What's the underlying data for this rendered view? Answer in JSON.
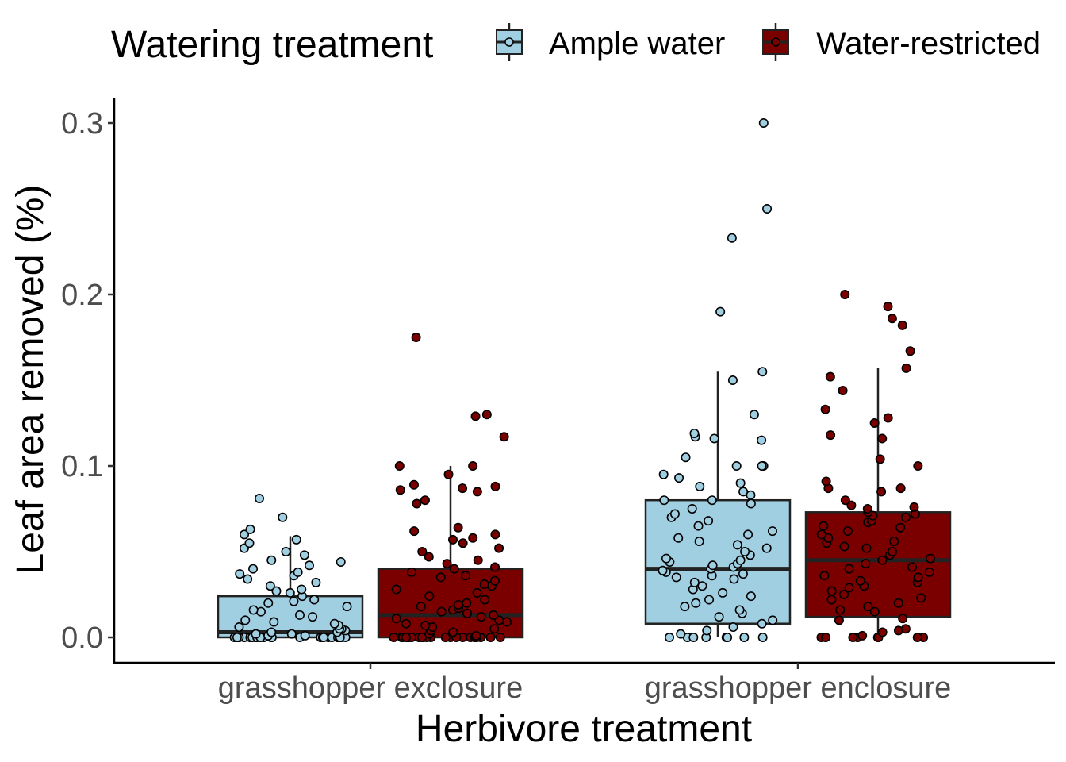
{
  "colors": {
    "ample": "#a1cfe2",
    "restricted": "#7a0000",
    "outline": "#222222"
  },
  "chart_data": {
    "type": "boxplot",
    "xlabel": "Herbivore treatment",
    "ylabel": "Leaf area removed (%)",
    "ylim": [
      -0.015,
      0.315
    ],
    "yticks": [
      0.0,
      0.1,
      0.2,
      0.3
    ],
    "ytick_labels": [
      "0.0",
      "0.1",
      "0.2",
      "0.3"
    ],
    "categories": [
      "grasshopper exclosure",
      "grasshopper enclosure"
    ],
    "legend": {
      "title": "Watering treatment",
      "position": "top",
      "entries": [
        "Ample water",
        "Water-restricted"
      ]
    },
    "grid": false,
    "series": [
      {
        "name": "Ample water",
        "color": "#a1cfe2",
        "boxes": [
          {
            "category": "grasshopper exclosure",
            "q1": 0.0,
            "median": 0.003,
            "q3": 0.024,
            "whisker_low": 0.0,
            "whisker_high": 0.059
          },
          {
            "category": "grasshopper enclosure",
            "q1": 0.008,
            "median": 0.04,
            "q3": 0.08,
            "whisker_low": 0.0,
            "whisker_high": 0.155
          }
        ],
        "points": [
          [
            0.0,
            0.0,
            0.0,
            0.0,
            0.0,
            0.0,
            0.0,
            0.0,
            0.0,
            0.0,
            0.0,
            0.0,
            0.0,
            0.0,
            0.0,
            0.0,
            0.0,
            0.0,
            0.0,
            0.0,
            0.0,
            0.0,
            0.0,
            0.0,
            0.0,
            0.0,
            0.001,
            0.001,
            0.002,
            0.002,
            0.003,
            0.003,
            0.004,
            0.005,
            0.005,
            0.006,
            0.007,
            0.008,
            0.009,
            0.01,
            0.012,
            0.013,
            0.015,
            0.016,
            0.018,
            0.02,
            0.021,
            0.022,
            0.024,
            0.026,
            0.027,
            0.028,
            0.03,
            0.032,
            0.034,
            0.036,
            0.037,
            0.038,
            0.04,
            0.042,
            0.044,
            0.045,
            0.048,
            0.05,
            0.052,
            0.055,
            0.057,
            0.06,
            0.063,
            0.07,
            0.081
          ],
          [
            0.0,
            0.0,
            0.0,
            0.0,
            0.0,
            0.0,
            0.0,
            0.0,
            0.002,
            0.004,
            0.006,
            0.008,
            0.01,
            0.012,
            0.014,
            0.016,
            0.018,
            0.02,
            0.022,
            0.024,
            0.026,
            0.028,
            0.03,
            0.032,
            0.034,
            0.035,
            0.036,
            0.037,
            0.038,
            0.039,
            0.04,
            0.041,
            0.042,
            0.043,
            0.044,
            0.045,
            0.046,
            0.048,
            0.05,
            0.052,
            0.054,
            0.056,
            0.058,
            0.06,
            0.062,
            0.065,
            0.068,
            0.07,
            0.072,
            0.075,
            0.078,
            0.08,
            0.08,
            0.083,
            0.085,
            0.088,
            0.09,
            0.093,
            0.095,
            0.1,
            0.1,
            0.1,
            0.105,
            0.115,
            0.116,
            0.117,
            0.119,
            0.13,
            0.15,
            0.155,
            0.19,
            0.233,
            0.25,
            0.3
          ]
        ]
      },
      {
        "name": "Water-restricted",
        "color": "#7a0000",
        "boxes": [
          {
            "category": "grasshopper exclosure",
            "q1": 0.0,
            "median": 0.013,
            "q3": 0.04,
            "whisker_low": 0.0,
            "whisker_high": 0.1
          },
          {
            "category": "grasshopper enclosure",
            "q1": 0.012,
            "median": 0.045,
            "q3": 0.073,
            "whisker_low": 0.0,
            "whisker_high": 0.157
          }
        ],
        "points": [
          [
            0.0,
            0.0,
            0.0,
            0.0,
            0.0,
            0.0,
            0.0,
            0.0,
            0.0,
            0.0,
            0.0,
            0.0,
            0.0,
            0.0,
            0.0,
            0.0,
            0.0,
            0.0,
            0.0,
            0.0,
            0.0,
            0.0,
            0.0,
            0.001,
            0.002,
            0.003,
            0.004,
            0.005,
            0.006,
            0.007,
            0.008,
            0.009,
            0.01,
            0.011,
            0.012,
            0.013,
            0.014,
            0.015,
            0.016,
            0.017,
            0.018,
            0.019,
            0.02,
            0.022,
            0.024,
            0.026,
            0.028,
            0.03,
            0.031,
            0.033,
            0.035,
            0.036,
            0.038,
            0.04,
            0.041,
            0.043,
            0.045,
            0.047,
            0.05,
            0.052,
            0.055,
            0.057,
            0.058,
            0.06,
            0.062,
            0.064,
            0.078,
            0.08,
            0.085,
            0.086,
            0.087,
            0.088,
            0.089,
            0.095,
            0.1,
            0.1,
            0.117,
            0.129,
            0.13,
            0.175
          ],
          [
            0.0,
            0.0,
            0.0,
            0.0,
            0.0,
            0.0,
            0.0,
            0.0,
            0.001,
            0.003,
            0.004,
            0.005,
            0.01,
            0.011,
            0.015,
            0.016,
            0.018,
            0.02,
            0.022,
            0.023,
            0.025,
            0.027,
            0.029,
            0.03,
            0.032,
            0.033,
            0.035,
            0.036,
            0.038,
            0.04,
            0.041,
            0.043,
            0.045,
            0.046,
            0.048,
            0.05,
            0.052,
            0.053,
            0.055,
            0.056,
            0.058,
            0.06,
            0.062,
            0.064,
            0.065,
            0.067,
            0.068,
            0.07,
            0.071,
            0.072,
            0.073,
            0.075,
            0.076,
            0.077,
            0.08,
            0.085,
            0.087,
            0.087,
            0.091,
            0.1,
            0.104,
            0.116,
            0.118,
            0.125,
            0.128,
            0.133,
            0.144,
            0.152,
            0.157,
            0.167,
            0.182,
            0.186,
            0.193,
            0.2
          ]
        ]
      }
    ]
  }
}
